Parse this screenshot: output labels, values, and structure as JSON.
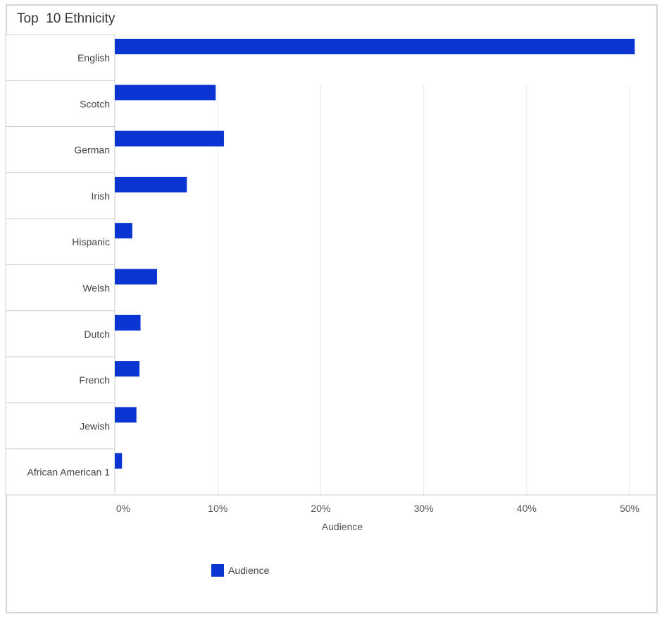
{
  "chart_data": {
    "type": "bar",
    "orientation": "horizontal",
    "title": "Top  10 Ethnicity",
    "categories": [
      "English",
      "Scotch",
      "German",
      "Irish",
      "Hispanic",
      "Welsh",
      "Dutch",
      "French",
      "Jewish",
      "African American 1"
    ],
    "series": [
      {
        "name": "Audience",
        "color": "#0a35d2",
        "values": [
          50.5,
          9.8,
          10.6,
          7.0,
          1.7,
          4.1,
          2.5,
          2.4,
          2.1,
          0.7
        ]
      }
    ],
    "xlabel": "Audience",
    "ylabel": "",
    "xlim": [
      0,
      50
    ],
    "xticks": [
      "0%",
      "10%",
      "20%",
      "30%",
      "40%",
      "50%"
    ],
    "grid": true,
    "legend": "bottom"
  }
}
